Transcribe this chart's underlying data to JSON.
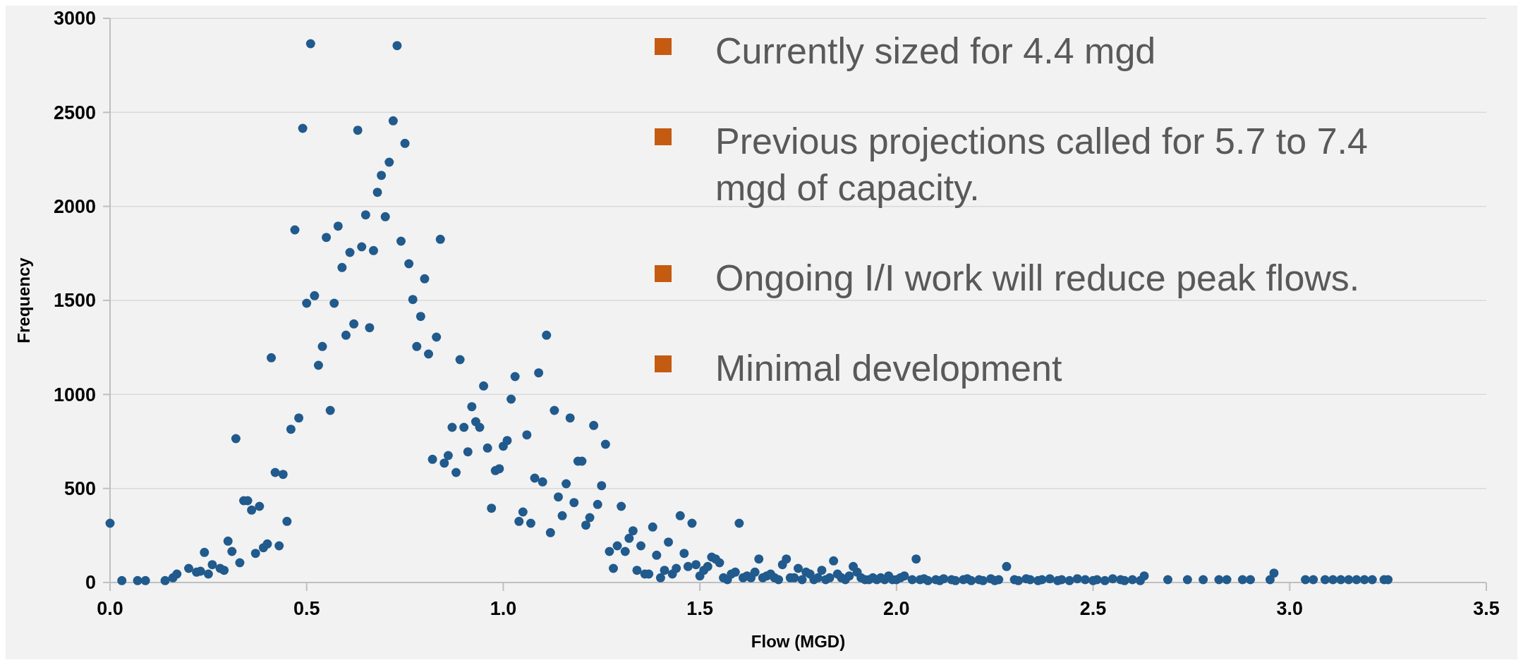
{
  "chart_data": {
    "type": "scatter",
    "xlabel": "Flow (MGD)",
    "ylabel": "Frequency",
    "annotations": [
      "Currently sized for 4.4 mgd",
      "Previous projections called for 5.7 to 7.4 mgd of capacity.",
      "Ongoing I/I work will reduce peak flows.",
      "Minimal development"
    ],
    "xlim": [
      0,
      3.5
    ],
    "xticks": [
      {
        "value": 0,
        "label": "0.0"
      },
      0.5,
      {
        "value": 1,
        "label": "1.0"
      },
      1.5,
      {
        "value": 2,
        "label": "2.0"
      },
      2.5,
      {
        "value": 3,
        "label": "3.0"
      },
      3.5
    ],
    "ylim": [
      0,
      3000
    ],
    "yticks": [
      0,
      500,
      1000,
      1500,
      2000,
      2500,
      3000
    ],
    "grid": "y",
    "marker": "circle",
    "series": [
      {
        "color": "#215a8c",
        "x": [
          0,
          0.03,
          0.07,
          0.09,
          0.14,
          0.16,
          0.17,
          0.2,
          0.22,
          0.23,
          0.24,
          0.25,
          0.26,
          0.28,
          0.29,
          0.3,
          0.31,
          0.32,
          0.33,
          0.34,
          0.35,
          0.36,
          0.37,
          0.38,
          0.39,
          0.4,
          0.41,
          0.42,
          0.43,
          0.44,
          0.45,
          0.46,
          0.47,
          0.48,
          0.49,
          0.5,
          0.51,
          0.52,
          0.53,
          0.54,
          0.55,
          0.56,
          0.57,
          0.58,
          0.59,
          0.6,
          0.61,
          0.62,
          0.63,
          0.64,
          0.65,
          0.66,
          0.67,
          0.68,
          0.69,
          0.7,
          0.71,
          0.72,
          0.73,
          0.74,
          0.75,
          0.76,
          0.77,
          0.78,
          0.79,
          0.8,
          0.81,
          0.82,
          0.83,
          0.84,
          0.85,
          0.86,
          0.87,
          0.88,
          0.89,
          0.9,
          0.91,
          0.92,
          0.93,
          0.94,
          0.95,
          0.96,
          0.97,
          0.98,
          0.99,
          1.0,
          1.01,
          1.02,
          1.03,
          1.04,
          1.05,
          1.06,
          1.07,
          1.08,
          1.09,
          1.1,
          1.11,
          1.12,
          1.13,
          1.14,
          1.15,
          1.16,
          1.17,
          1.18,
          1.19,
          1.2,
          1.21,
          1.22,
          1.23,
          1.24,
          1.25,
          1.26,
          1.27,
          1.28,
          1.29,
          1.3,
          1.31,
          1.32,
          1.33,
          1.34,
          1.35,
          1.36,
          1.37,
          1.38,
          1.39,
          1.4,
          1.41,
          1.42,
          1.43,
          1.44,
          1.45,
          1.46,
          1.47,
          1.48,
          1.49,
          1.5,
          1.51,
          1.52,
          1.53,
          1.54,
          1.55,
          1.56,
          1.57,
          1.58,
          1.59,
          1.6,
          1.61,
          1.62,
          1.63,
          1.64,
          1.65,
          1.66,
          1.67,
          1.68,
          1.69,
          1.7,
          1.71,
          1.72,
          1.73,
          1.74,
          1.75,
          1.76,
          1.77,
          1.78,
          1.79,
          1.8,
          1.81,
          1.82,
          1.83,
          1.84,
          1.85,
          1.86,
          1.87,
          1.88,
          1.89,
          1.9,
          1.91,
          1.92,
          1.93,
          1.94,
          1.95,
          1.96,
          1.97,
          1.98,
          1.99,
          2.0,
          2.01,
          2.02,
          2.04,
          2.05,
          2.06,
          2.07,
          2.08,
          2.1,
          2.11,
          2.12,
          2.14,
          2.15,
          2.17,
          2.18,
          2.19,
          2.21,
          2.22,
          2.24,
          2.25,
          2.26,
          2.28,
          2.3,
          2.31,
          2.33,
          2.34,
          2.36,
          2.37,
          2.39,
          2.41,
          2.42,
          2.44,
          2.46,
          2.48,
          2.5,
          2.51,
          2.53,
          2.55,
          2.57,
          2.58,
          2.6,
          2.62,
          2.63,
          2.69,
          2.74,
          2.78,
          2.82,
          2.84,
          2.88,
          2.9,
          2.95,
          2.96,
          3.04,
          3.06,
          3.09,
          3.11,
          3.13,
          3.15,
          3.17,
          3.19,
          3.21,
          3.24,
          3.25
        ],
        "values": [
          315,
          10,
          10,
          10,
          10,
          25,
          45,
          75,
          55,
          60,
          160,
          45,
          95,
          75,
          65,
          220,
          165,
          765,
          105,
          435,
          435,
          385,
          155,
          405,
          185,
          205,
          1195,
          585,
          195,
          575,
          325,
          815,
          1875,
          875,
          2415,
          1485,
          2865,
          1525,
          1155,
          1255,
          1835,
          915,
          1485,
          1895,
          1675,
          1315,
          1755,
          1375,
          2405,
          1785,
          1955,
          1355,
          1765,
          2075,
          2165,
          1945,
          2235,
          2455,
          2855,
          1815,
          2335,
          1695,
          1505,
          1255,
          1415,
          1615,
          1215,
          655,
          1305,
          1825,
          635,
          675,
          825,
          585,
          1185,
          825,
          695,
          935,
          855,
          825,
          1045,
          715,
          395,
          595,
          605,
          725,
          755,
          975,
          1095,
          325,
          375,
          785,
          315,
          555,
          1115,
          535,
          1315,
          265,
          915,
          455,
          355,
          525,
          875,
          425,
          645,
          645,
          305,
          345,
          835,
          415,
          515,
          735,
          165,
          75,
          195,
          405,
          165,
          235,
          275,
          65,
          195,
          45,
          45,
          295,
          145,
          25,
          65,
          215,
          45,
          75,
          355,
          155,
          85,
          315,
          95,
          35,
          65,
          85,
          135,
          125,
          105,
          25,
          15,
          45,
          55,
          315,
          25,
          35,
          25,
          55,
          125,
          25,
          35,
          45,
          25,
          15,
          95,
          125,
          25,
          25,
          75,
          15,
          55,
          45,
          15,
          25,
          65,
          15,
          25,
          115,
          45,
          25,
          15,
          35,
          85,
          55,
          25,
          15,
          15,
          25,
          15,
          25,
          15,
          35,
          15,
          15,
          25,
          35,
          15,
          125,
          15,
          20,
          10,
          15,
          10,
          20,
          15,
          10,
          15,
          20,
          10,
          15,
          10,
          20,
          10,
          15,
          85,
          15,
          10,
          20,
          15,
          10,
          15,
          20,
          10,
          15,
          10,
          20,
          15,
          10,
          15,
          10,
          20,
          15,
          10,
          15,
          10,
          35,
          15,
          15,
          15,
          15,
          15,
          15,
          15,
          15,
          50,
          15,
          15,
          15,
          15,
          15,
          15,
          15,
          15,
          15,
          15,
          15
        ]
      }
    ]
  }
}
